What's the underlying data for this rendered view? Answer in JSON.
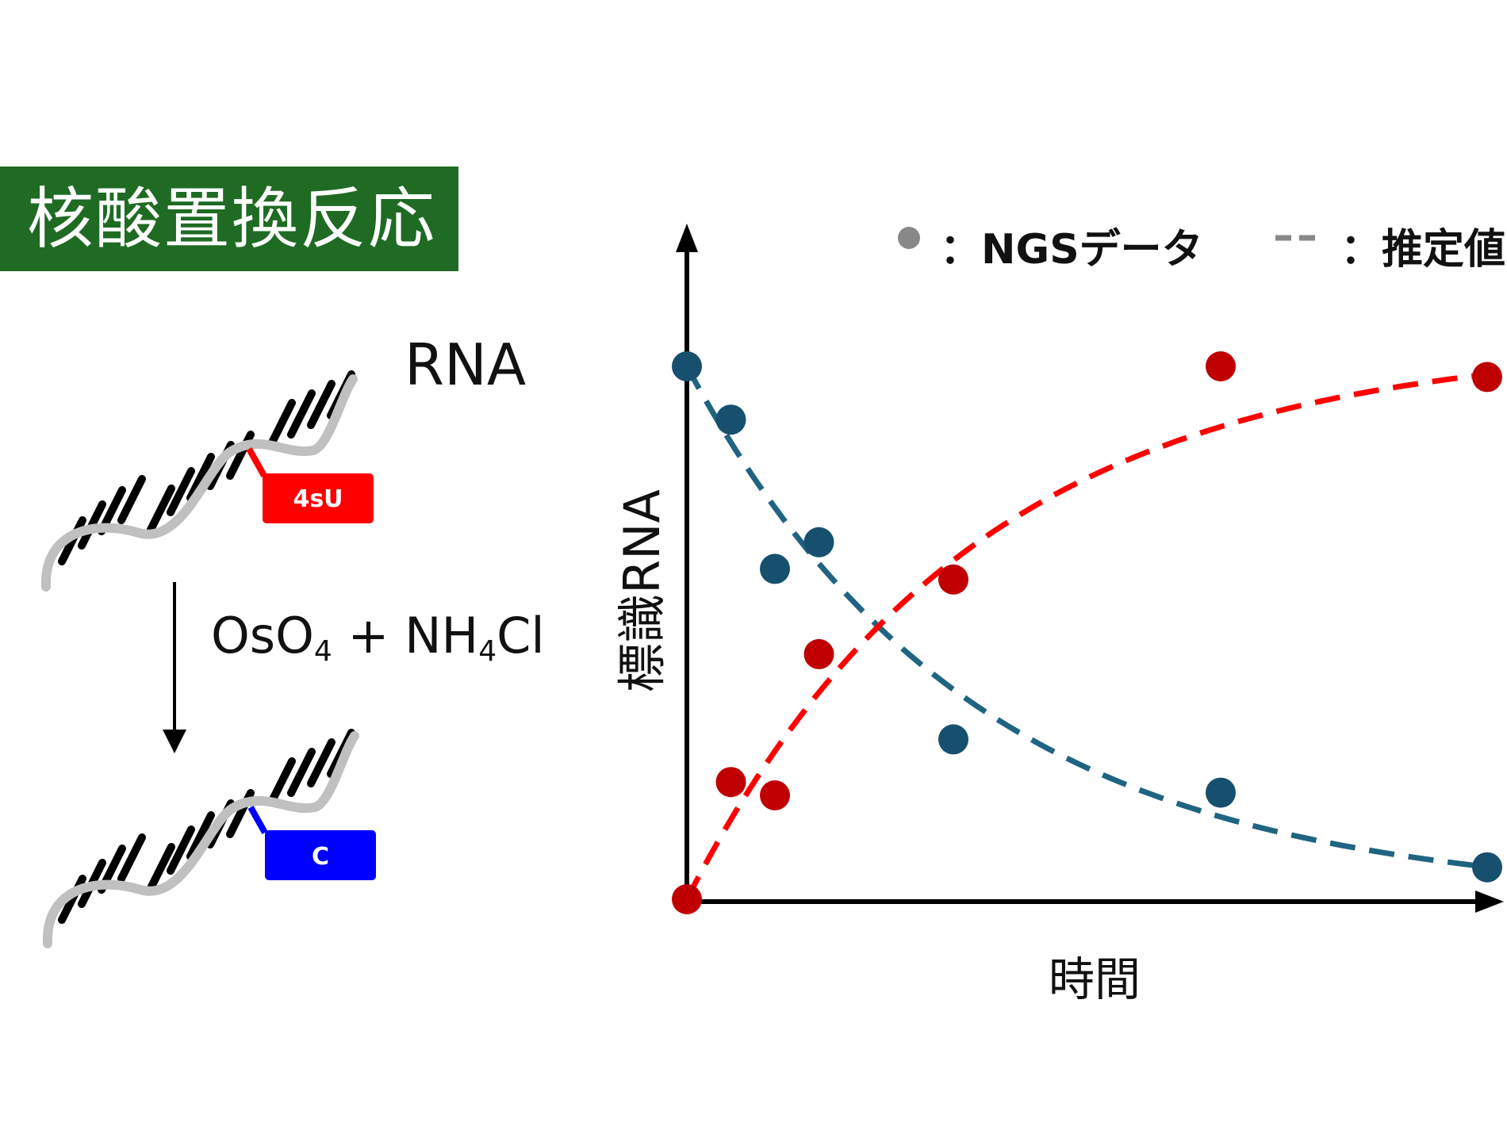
{
  "title": "核酸置換反応",
  "rna_label": "RNA",
  "modified_base_label": "4sU",
  "converted_base_label": "C",
  "reaction": {
    "parts": [
      "OsO",
      "4",
      " + NH",
      "4",
      "Cl"
    ]
  },
  "legend": {
    "points_label": "：NGSデータ",
    "line_label": "：推定値",
    "point_color": "#888888",
    "line_color": "#888888"
  },
  "colors": {
    "title_bg": "#1f6b24",
    "modified": "#ff0000",
    "converted": "#0000ff",
    "strand": "#c0c0c0"
  },
  "chart_data": {
    "type": "scatter",
    "xlabel": "時間",
    "ylabel": "標識RNA",
    "grid": false,
    "legend_position": "top",
    "series": [
      {
        "color": "#17506e",
        "points": [
          [
            0,
            1.0
          ],
          [
            0.055,
            0.9
          ],
          [
            0.11,
            0.62
          ],
          [
            0.165,
            0.67
          ],
          [
            0.333,
            0.3
          ],
          [
            0.667,
            0.2
          ],
          [
            1.0,
            0.06
          ]
        ],
        "fit": "decay",
        "fit_color": "#1f6482"
      },
      {
        "color": "#c00000",
        "points": [
          [
            0,
            0.0
          ],
          [
            0.055,
            0.22
          ],
          [
            0.11,
            0.195
          ],
          [
            0.165,
            0.46
          ],
          [
            0.333,
            0.6
          ],
          [
            0.667,
            1.0
          ],
          [
            1.0,
            0.98
          ]
        ],
        "fit": "rise",
        "fit_color": "#ff0000"
      }
    ]
  }
}
